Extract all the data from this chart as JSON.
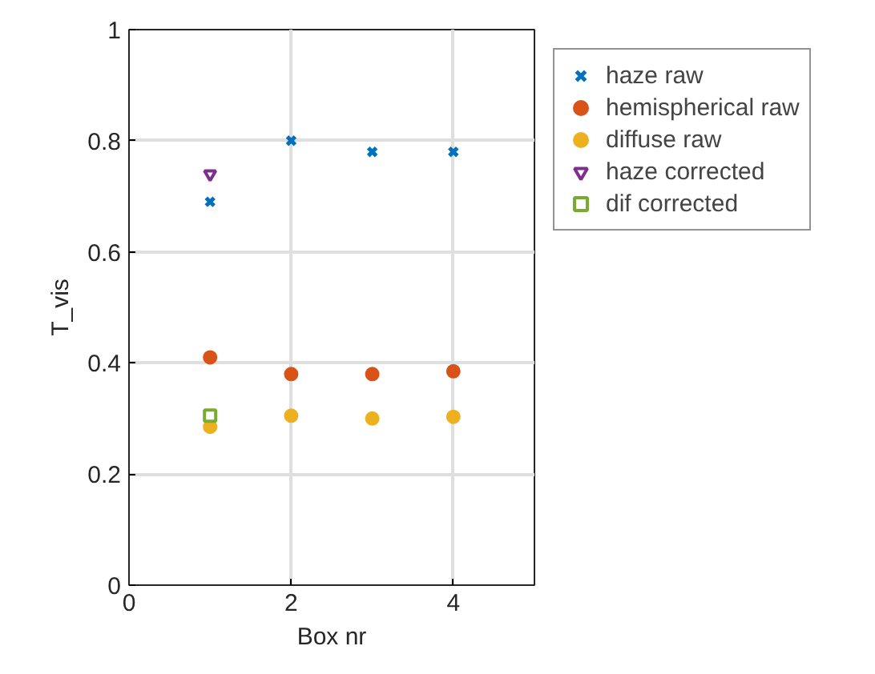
{
  "chart_data": {
    "type": "scatter",
    "xlabel": "Box nr",
    "ylabel": "T_vis",
    "x": [
      1,
      2,
      3,
      4
    ],
    "series": [
      {
        "name": "haze raw",
        "color": "#0072bd",
        "marker": "cross",
        "values": [
          0.69,
          0.8,
          0.78,
          0.78
        ]
      },
      {
        "name": "hemispherical raw",
        "color": "#d95319",
        "marker": "circle",
        "values": [
          0.41,
          0.38,
          0.38,
          0.385
        ]
      },
      {
        "name": "diffuse raw",
        "color": "#edb120",
        "marker": "circle",
        "values": [
          0.285,
          0.305,
          0.3,
          0.303
        ]
      },
      {
        "name": "haze corrected",
        "color": "#7e2f8e",
        "marker": "triangle",
        "x": [
          1
        ],
        "values": [
          0.74
        ]
      },
      {
        "name": "dif corrected",
        "color": "#77ac30",
        "marker": "square",
        "x": [
          1
        ],
        "values": [
          0.305
        ]
      }
    ],
    "xlim": [
      0,
      5
    ],
    "ylim": [
      0,
      1
    ],
    "xticks": [
      0,
      2,
      4
    ],
    "yticks": [
      0,
      0.2,
      0.4,
      0.6,
      0.8,
      1
    ],
    "grid": true,
    "legend": "top right"
  }
}
